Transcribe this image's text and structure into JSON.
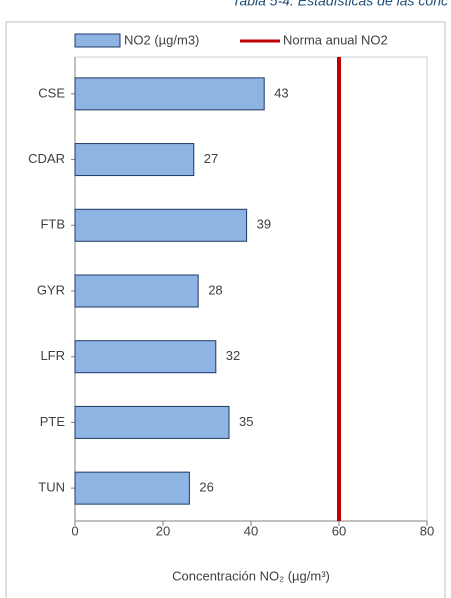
{
  "chart_data": {
    "type": "barh",
    "title": "Tabla 5-4. Estadísticas de las conc",
    "x_label": "Concentración  NO₂ (µg/m³)",
    "categories": [
      "CSE",
      "CDAR",
      "FTB",
      "GYR",
      "LFR",
      "PTE",
      "TUN"
    ],
    "series": [
      {
        "name": "NO2  (µg/m3)",
        "color": "#8db4e2",
        "values": [
          43,
          27,
          39,
          28,
          32,
          35,
          26
        ]
      }
    ],
    "reference": {
      "name": "Norma anual NO2",
      "value": 60,
      "color": "#c00000"
    },
    "xlim": [
      0,
      80
    ],
    "xticks": [
      0,
      20,
      40,
      60,
      80
    ]
  }
}
